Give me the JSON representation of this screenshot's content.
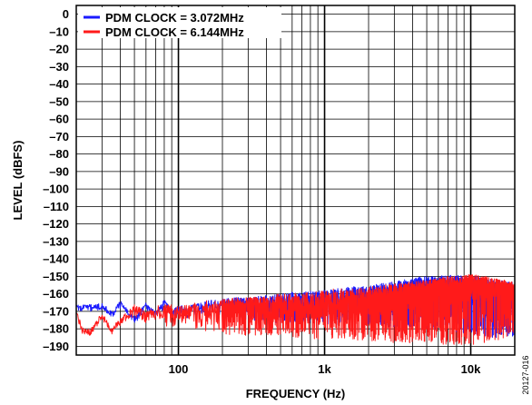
{
  "chart_data": {
    "type": "line",
    "title": "",
    "xlabel": "FREQUENCY (Hz)",
    "ylabel": "LEVEL (dBFS)",
    "x_scale": "log",
    "xlim": [
      20,
      20000
    ],
    "ylim": [
      -195,
      5
    ],
    "x_ticks": [
      {
        "value": 100,
        "label": "100"
      },
      {
        "value": 1000,
        "label": "1k"
      },
      {
        "value": 10000,
        "label": "10k"
      }
    ],
    "y_ticks": [
      0,
      -10,
      -20,
      -30,
      -40,
      -50,
      -60,
      -70,
      -80,
      -90,
      -100,
      -110,
      -120,
      -130,
      -140,
      -150,
      -160,
      -170,
      -180,
      -190
    ],
    "y_tick_labels": [
      "0",
      "–10",
      "–20",
      "–30",
      "–40",
      "–50",
      "–60",
      "–70",
      "–80",
      "–90",
      "–100",
      "–110",
      "–120",
      "–130",
      "–140",
      "–150",
      "–160",
      "–170",
      "–180",
      "–190"
    ],
    "grid": true,
    "legend_position": "top-left",
    "series": [
      {
        "name": "PDM CLOCK = 3.072MHz",
        "color": "#1a1aff",
        "x": [
          20,
          25,
          30,
          35,
          40,
          45,
          50,
          60,
          70,
          80,
          90,
          100,
          120,
          150,
          200,
          250,
          300,
          400,
          500,
          600,
          700,
          800,
          1000,
          1200,
          1500,
          2000,
          2500,
          3000,
          4000,
          5000,
          6000,
          7000,
          8000,
          9000,
          10000,
          11000,
          12000,
          13000,
          14000,
          15000,
          16000,
          17000,
          18000,
          19000,
          20000
        ],
        "y": [
          -168,
          -168,
          -167,
          -172,
          -166,
          -170,
          -175,
          -167,
          -172,
          -165,
          -171,
          -170,
          -170,
          -168,
          -167,
          -166,
          -167,
          -168,
          -167,
          -167,
          -166,
          -167,
          -166,
          -166,
          -165,
          -165,
          -164,
          -163,
          -162,
          -160,
          -160,
          -160,
          -161,
          -162,
          -163,
          -163,
          -164,
          -163,
          -163,
          -163,
          -162,
          -163,
          -163,
          -163,
          -164
        ],
        "min": [
          -170,
          -170,
          -169,
          -174,
          -168,
          -172,
          -177,
          -170,
          -174,
          -168,
          -173,
          -173,
          -174,
          -172,
          -174,
          -174,
          -175,
          -176,
          -177,
          -177,
          -176,
          -177,
          -177,
          -178,
          -178,
          -178,
          -179,
          -179,
          -179,
          -180,
          -181,
          -181,
          -182,
          -183,
          -184,
          -184,
          -185,
          -185,
          -185,
          -186,
          -186,
          -185,
          -185,
          -185,
          -184
        ],
        "max": [
          -166,
          -166,
          -165,
          -170,
          -164,
          -168,
          -173,
          -165,
          -170,
          -163,
          -169,
          -167,
          -166,
          -164,
          -163,
          -162,
          -162,
          -161,
          -160,
          -159,
          -159,
          -158,
          -158,
          -157,
          -156,
          -155,
          -154,
          -153,
          -151,
          -150,
          -150,
          -149,
          -149,
          -150,
          -150,
          -150,
          -151,
          -151,
          -152,
          -152,
          -152,
          -153,
          -153,
          -153,
          -154
        ]
      },
      {
        "name": "PDM CLOCK = 6.144MHz",
        "color": "#ff1a1a",
        "x": [
          20,
          22,
          25,
          28,
          30,
          33,
          35,
          40,
          45,
          50,
          55,
          60,
          70,
          80,
          90,
          100,
          120,
          150,
          200,
          250,
          300,
          400,
          500,
          600,
          700,
          800,
          1000,
          1200,
          1500,
          2000,
          2500,
          3000,
          4000,
          5000,
          6000,
          7000,
          8000,
          9000,
          10000,
          11000,
          12000,
          13000,
          14000,
          15000,
          16000,
          17000,
          18000,
          19000,
          20000
        ],
        "y": [
          -171,
          -181,
          -182,
          -176,
          -173,
          -178,
          -181,
          -176,
          -172,
          -169,
          -171,
          -173,
          -171,
          -171,
          -172,
          -172,
          -172,
          -171,
          -170,
          -169,
          -170,
          -170,
          -169,
          -170,
          -170,
          -169,
          -168,
          -168,
          -167,
          -166,
          -166,
          -165,
          -163,
          -162,
          -161,
          -160,
          -160,
          -159,
          -158,
          -158,
          -159,
          -159,
          -158,
          -158,
          -158,
          -159,
          -159,
          -160,
          -160
        ],
        "min": [
          -173,
          -183,
          -184,
          -178,
          -175,
          -180,
          -183,
          -178,
          -175,
          -173,
          -175,
          -177,
          -176,
          -178,
          -180,
          -180,
          -181,
          -182,
          -183,
          -184,
          -184,
          -184,
          -184,
          -185,
          -185,
          -186,
          -186,
          -186,
          -187,
          -187,
          -187,
          -188,
          -188,
          -188,
          -189,
          -189,
          -189,
          -189,
          -189,
          -189,
          -188,
          -188,
          -187,
          -187,
          -186,
          -185,
          -184,
          -183,
          -182
        ],
        "max": [
          -169,
          -179,
          -180,
          -174,
          -171,
          -176,
          -179,
          -174,
          -170,
          -166,
          -168,
          -170,
          -167,
          -166,
          -166,
          -166,
          -165,
          -164,
          -163,
          -162,
          -162,
          -161,
          -160,
          -160,
          -159,
          -159,
          -158,
          -157,
          -157,
          -156,
          -155,
          -154,
          -153,
          -152,
          -151,
          -150,
          -150,
          -149,
          -149,
          -149,
          -150,
          -150,
          -151,
          -151,
          -152,
          -152,
          -153,
          -153,
          -154
        ]
      }
    ]
  },
  "figure_id": "20127-016"
}
